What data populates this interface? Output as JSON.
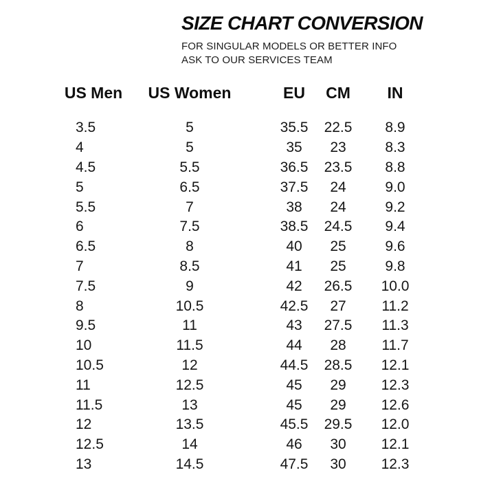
{
  "header": {
    "title": "SIZE CHART CONVERSION",
    "subtitle_line1": "FOR SINGULAR MODELS OR BETTER INFO",
    "subtitle_line2": "ASK TO OUR SERVICES TEAM"
  },
  "colors": {
    "background": "#ffffff",
    "text": "#141414"
  },
  "chart_data": {
    "type": "table",
    "title": "SIZE CHART CONVERSION",
    "columns": [
      "US Men",
      "US Women",
      "EU",
      "CM",
      "IN"
    ],
    "rows": [
      [
        "3.5",
        "5",
        "35.5",
        "22.5",
        "8.9"
      ],
      [
        "4",
        "5",
        "35",
        "23",
        "8.3"
      ],
      [
        "4.5",
        "5.5",
        "36.5",
        "23.5",
        "8.8"
      ],
      [
        "5",
        "6.5",
        "37.5",
        "24",
        "9.0"
      ],
      [
        "5.5",
        "7",
        "38",
        "24",
        "9.2"
      ],
      [
        "6",
        "7.5",
        "38.5",
        "24.5",
        "9.4"
      ],
      [
        "6.5",
        "8",
        "40",
        "25",
        "9.6"
      ],
      [
        "7",
        "8.5",
        "41",
        "25",
        "9.8"
      ],
      [
        "7.5",
        "9",
        "42",
        "26.5",
        "10.0"
      ],
      [
        "8",
        "10.5",
        "42.5",
        "27",
        "11.2"
      ],
      [
        "9.5",
        "11",
        "43",
        "27.5",
        "11.3"
      ],
      [
        "10",
        "11.5",
        "44",
        "28",
        "11.7"
      ],
      [
        "10.5",
        "12",
        "44.5",
        "28.5",
        "12.1"
      ],
      [
        "11",
        "12.5",
        "45",
        "29",
        "12.3"
      ],
      [
        "11.5",
        "13",
        "45",
        "29",
        "12.6"
      ],
      [
        "12",
        "13.5",
        "45.5",
        "29.5",
        "12.0"
      ],
      [
        "12.5",
        "14",
        "46",
        "30",
        "12.1"
      ],
      [
        "13",
        "14.5",
        "47.5",
        "30",
        "12.3"
      ]
    ]
  }
}
